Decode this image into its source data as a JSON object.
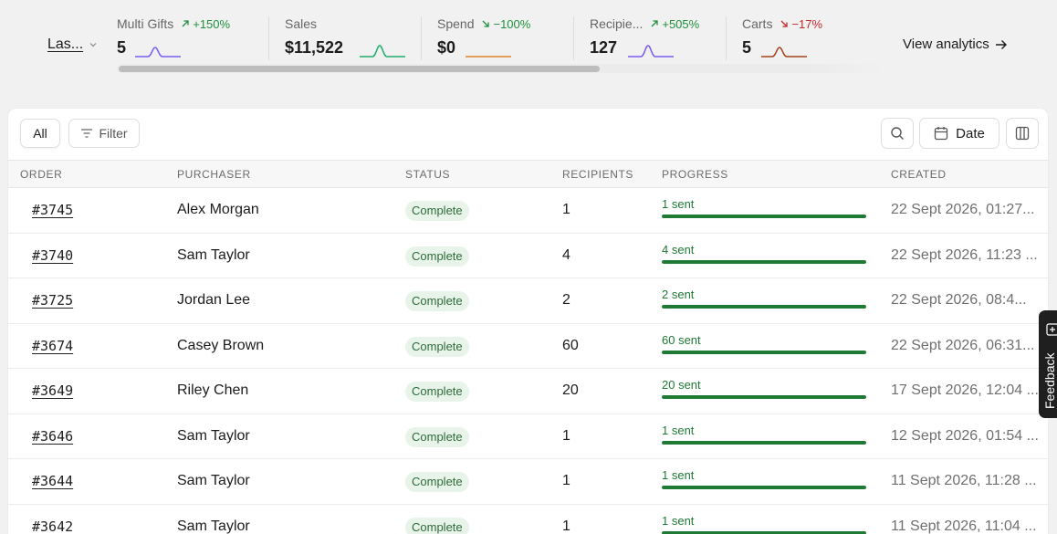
{
  "period": {
    "label": "Las..."
  },
  "stats": [
    {
      "label": "Multi Gifts",
      "delta": "+150%",
      "direction": "up",
      "value": "5",
      "color": "#7b5cf0"
    },
    {
      "label": "Sales",
      "delta": "",
      "direction": "",
      "value": "$11,522",
      "color": "#1fae6a"
    },
    {
      "label": "Spend",
      "delta": "−100%",
      "direction": "down-green",
      "value": "$0",
      "color": "#e0822a"
    },
    {
      "label": "Recipie...",
      "delta": "+505%",
      "direction": "up",
      "value": "127",
      "color": "#7b5cf0"
    },
    {
      "label": "Carts",
      "delta": "−17%",
      "direction": "down",
      "value": "5",
      "color": "#a3431c"
    }
  ],
  "view_analytics": "View analytics",
  "toolbar": {
    "all_label": "All",
    "filter_label": "Filter",
    "date_label": "Date"
  },
  "table": {
    "headers": [
      "ORDER",
      "PURCHASER",
      "STATUS",
      "RECIPIENTS",
      "PROGRESS",
      "CREATED"
    ],
    "rows": [
      {
        "order": "#3745",
        "purchaser": "Alex Morgan",
        "status": "Complete",
        "recipients": "1",
        "progress": "1 sent",
        "progress_fraction": 1,
        "created": "22 Sept 2026, 01:27..."
      },
      {
        "order": "#3740",
        "purchaser": "Sam Taylor",
        "status": "Complete",
        "recipients": "4",
        "progress": "4 sent",
        "progress_fraction": 1,
        "created": "22 Sept 2026, 11:23 ..."
      },
      {
        "order": "#3725",
        "purchaser": "Jordan Lee",
        "status": "Complete",
        "recipients": "2",
        "progress": "2 sent",
        "progress_fraction": 1,
        "created": "22 Sept 2026, 08:4..."
      },
      {
        "order": "#3674",
        "purchaser": "Casey Brown",
        "status": "Complete",
        "recipients": "60",
        "progress": "60 sent",
        "progress_fraction": 1,
        "created": "22 Sept 2026, 06:31..."
      },
      {
        "order": "#3649",
        "purchaser": "Riley Chen",
        "status": "Complete",
        "recipients": "20",
        "progress": "20 sent",
        "progress_fraction": 1,
        "created": "17 Sept 2026, 12:04 ..."
      },
      {
        "order": "#3646",
        "purchaser": "Sam Taylor",
        "status": "Complete",
        "recipients": "1",
        "progress": "1 sent",
        "progress_fraction": 1,
        "created": "12 Sept 2026, 01:54 ..."
      },
      {
        "order": "#3644",
        "purchaser": "Sam Taylor",
        "status": "Complete",
        "recipients": "1",
        "progress": "1 sent",
        "progress_fraction": 1,
        "created": "11 Sept 2026, 11:28 ..."
      },
      {
        "order": "#3642",
        "purchaser": "Sam Taylor",
        "status": "Complete",
        "recipients": "1",
        "progress": "1 sent",
        "progress_fraction": 1,
        "created": "11 Sept 2026, 11:04 ..."
      }
    ]
  },
  "feedback_label": "Feedback"
}
